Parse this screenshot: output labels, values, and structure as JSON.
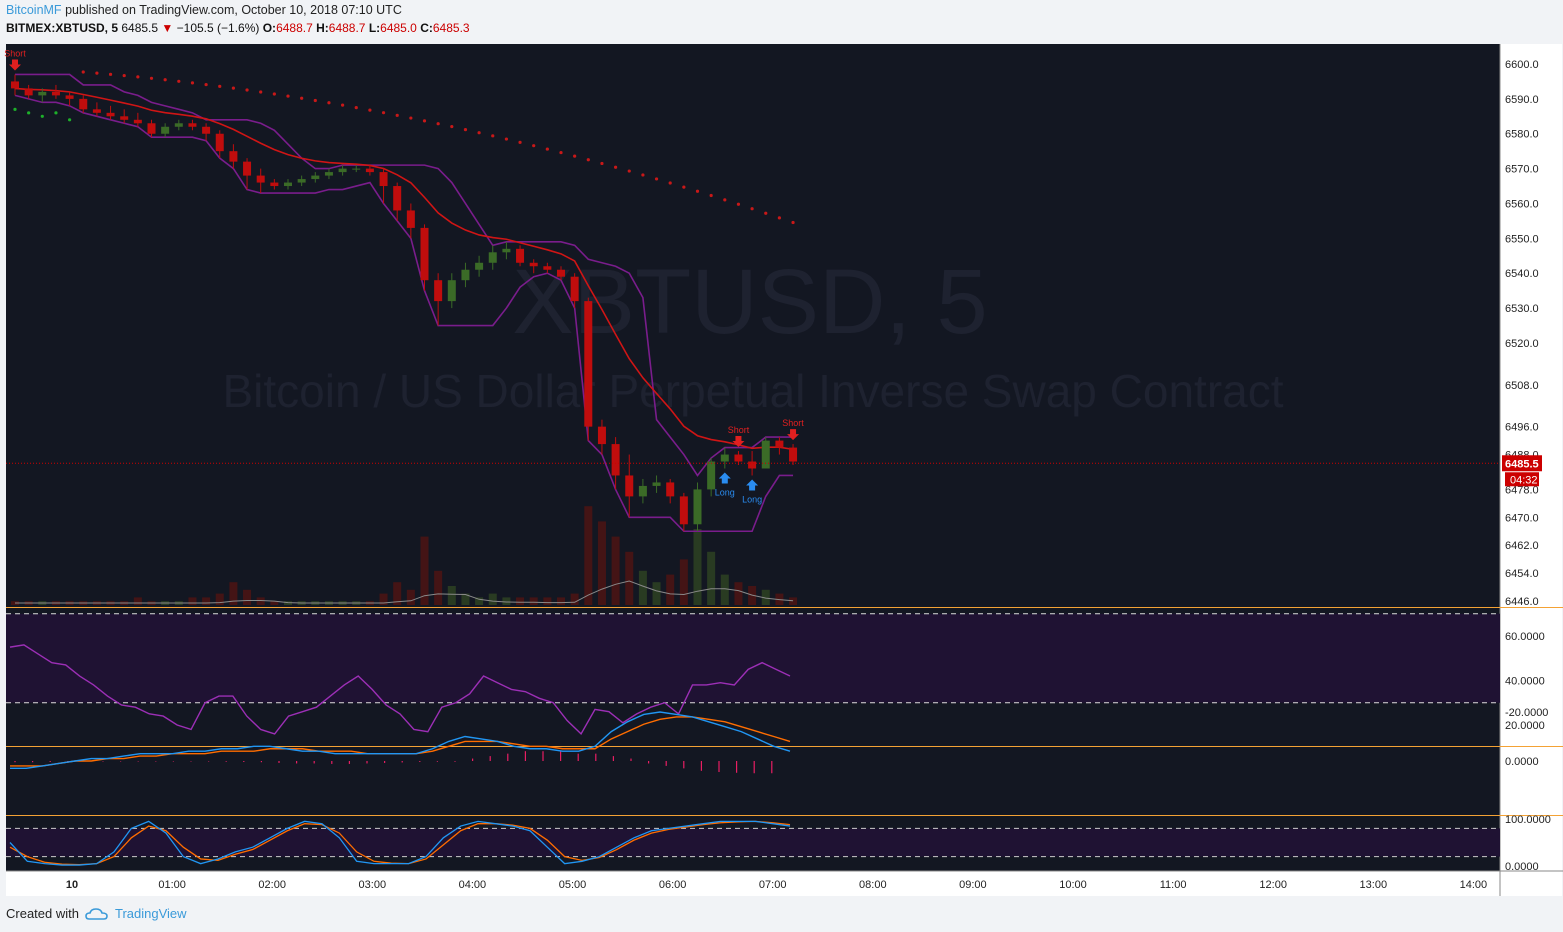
{
  "header": {
    "user": "BitcoinMF",
    "published_text": "published on TradingView.com, October 10, 2018 07:10 UTC"
  },
  "symbol_bar": {
    "symbol": "BITMEX:XBTUSD, 5",
    "last": "6485.5",
    "change": "−105.5 (−1.6%)",
    "open_label": "O:",
    "open": "6488.7",
    "high_label": "H:",
    "high": "6488.7",
    "low_label": "L:",
    "low": "6485.0",
    "close_label": "C:",
    "close": "6485.3"
  },
  "watermark": {
    "symbol": "XBTUSD, 5",
    "description": "Bitcoin / US Dollar Perpetual Inverse Swap Contract"
  },
  "price_badge": {
    "value": "6485.5",
    "countdown": "04:32"
  },
  "footer": {
    "created_with": "Created with",
    "brand": "TradingView"
  },
  "colors": {
    "background": "#131722",
    "up": "#3b6b27",
    "down": "#c00d0d",
    "ma": "#d01515",
    "psar": "#c81818",
    "channel": "#7a1d8c",
    "rsi_line": "#9c2fb6",
    "rsi_band": "#1f1233",
    "macd": "#2196f3",
    "signal": "#ff6d00",
    "hist": "#e91e63",
    "separator": "#f4a235"
  },
  "chart_data": [
    {
      "type": "candlestick",
      "title": "BITMEX:XBTUSD, 5",
      "x_tick_labels": [
        "10",
        "01:00",
        "02:00",
        "03:00",
        "04:00",
        "05:00",
        "06:00",
        "07:00",
        "08:00",
        "09:00",
        "10:00",
        "11:00",
        "12:00",
        "13:00",
        "14:00"
      ],
      "y_tick_labels": [
        "6600.0",
        "6590.0",
        "6580.0",
        "6570.0",
        "6560.0",
        "6550.0",
        "6540.0",
        "6530.0",
        "6520.0",
        "6508.0",
        "6496.0",
        "6488.0",
        "6478.0",
        "6470.0",
        "6462.0",
        "6454.0",
        "6446.0"
      ],
      "ylim": [
        6444,
        6602
      ],
      "candles_ohlc": [
        [
          6595,
          6597,
          6591,
          6593
        ],
        [
          6593,
          6594,
          6590,
          6591
        ],
        [
          6591,
          6593,
          6589,
          6592
        ],
        [
          6592,
          6594,
          6590,
          6591
        ],
        [
          6591,
          6592,
          6588,
          6590
        ],
        [
          6590,
          6591,
          6586,
          6587
        ],
        [
          6587,
          6589,
          6585,
          6586
        ],
        [
          6586,
          6588,
          6584,
          6585
        ],
        [
          6585,
          6587,
          6583,
          6584
        ],
        [
          6584,
          6586,
          6582,
          6583
        ],
        [
          6583,
          6584,
          6579,
          6580
        ],
        [
          6580,
          6583,
          6579,
          6582
        ],
        [
          6582,
          6584,
          6581,
          6583
        ],
        [
          6583,
          6584,
          6581,
          6582
        ],
        [
          6582,
          6583,
          6578,
          6580
        ],
        [
          6580,
          6581,
          6573,
          6575
        ],
        [
          6575,
          6577,
          6570,
          6572
        ],
        [
          6572,
          6573,
          6564,
          6568
        ],
        [
          6568,
          6570,
          6563,
          6566
        ],
        [
          6566,
          6567,
          6564,
          6565
        ],
        [
          6565,
          6567,
          6564,
          6566
        ],
        [
          6566,
          6568,
          6565,
          6567
        ],
        [
          6567,
          6569,
          6566,
          6568
        ],
        [
          6568,
          6570,
          6567,
          6569
        ],
        [
          6569,
          6571,
          6568,
          6570
        ],
        [
          6570,
          6571,
          6569,
          6570
        ],
        [
          6570,
          6571,
          6568,
          6569
        ],
        [
          6569,
          6570,
          6560,
          6565
        ],
        [
          6565,
          6566,
          6555,
          6558
        ],
        [
          6558,
          6560,
          6550,
          6553
        ],
        [
          6553,
          6554,
          6535,
          6538
        ],
        [
          6538,
          6540,
          6525,
          6532
        ],
        [
          6532,
          6540,
          6530,
          6538
        ],
        [
          6538,
          6543,
          6536,
          6541
        ],
        [
          6541,
          6545,
          6539,
          6543
        ],
        [
          6543,
          6548,
          6541,
          6546
        ],
        [
          6546,
          6549,
          6544,
          6547
        ],
        [
          6547,
          6548,
          6542,
          6543
        ],
        [
          6543,
          6544,
          6540,
          6542
        ],
        [
          6542,
          6543,
          6540,
          6541
        ],
        [
          6541,
          6542,
          6538,
          6539
        ],
        [
          6539,
          6540,
          6530,
          6532
        ],
        [
          6532,
          6533,
          6492,
          6496
        ],
        [
          6496,
          6498,
          6488,
          6491
        ],
        [
          6491,
          6493,
          6478,
          6482
        ],
        [
          6482,
          6488,
          6470,
          6476
        ],
        [
          6476,
          6481,
          6474,
          6479
        ],
        [
          6479,
          6482,
          6477,
          6480
        ],
        [
          6480,
          6481,
          6474,
          6476
        ],
        [
          6476,
          6477,
          6466,
          6468
        ],
        [
          6468,
          6480,
          6466,
          6478
        ],
        [
          6478,
          6487,
          6476,
          6486
        ],
        [
          6486,
          6490,
          6484,
          6488
        ],
        [
          6488,
          6489,
          6485,
          6486
        ],
        [
          6486,
          6489,
          6482,
          6484
        ],
        [
          6484,
          6493,
          6484,
          6492
        ],
        [
          6492,
          6493,
          6488,
          6490
        ],
        [
          6490,
          6491,
          6485,
          6486
        ]
      ],
      "volume": [
        1,
        1,
        1,
        1,
        1,
        1,
        1,
        1,
        1,
        2,
        1,
        1,
        1,
        2,
        2,
        3,
        6,
        4,
        2,
        1,
        1,
        1,
        1,
        1,
        1,
        1,
        1,
        3,
        6,
        4,
        18,
        9,
        5,
        3,
        2,
        3,
        2,
        2,
        2,
        2,
        2,
        3,
        26,
        22,
        18,
        14,
        9,
        6,
        8,
        12,
        20,
        14,
        8,
        6,
        5,
        4,
        3,
        2
      ],
      "annotations": [
        {
          "label": "Short"
        },
        {
          "label": "Short"
        },
        {
          "label": "Short"
        },
        {
          "label": "Long"
        },
        {
          "label": "Long"
        }
      ]
    },
    {
      "type": "line",
      "title": "RSI",
      "y_tick_labels": [
        "60.0000",
        "40.0000",
        "20.0000"
      ],
      "ylim": [
        10,
        72
      ],
      "upper_band": 70,
      "lower_band": 30,
      "values": [
        55,
        56,
        52,
        48,
        47,
        42,
        38,
        33,
        29,
        28,
        25,
        24,
        20,
        18,
        30,
        33,
        33,
        24,
        18,
        16,
        24,
        26,
        28,
        33,
        38,
        42,
        36,
        29,
        25,
        18,
        17,
        28,
        30,
        34,
        42,
        39,
        36,
        35,
        32,
        30,
        22,
        16,
        27,
        26,
        21,
        25,
        28,
        30,
        25,
        38,
        38,
        39,
        38,
        45,
        48,
        45,
        42
      ]
    },
    {
      "type": "line",
      "title": "MACD",
      "y_tick_labels": [
        "0.0000",
        "-20.0000"
      ],
      "ylim": [
        -25,
        6
      ],
      "macd": [
        3,
        3,
        2,
        1,
        0,
        -1,
        -1,
        -2,
        -3,
        -3,
        -3,
        -4,
        -4,
        -5,
        -5,
        -6,
        -6,
        -5,
        -4,
        -4,
        -3,
        -3,
        -3,
        -3,
        -3,
        -3,
        -5,
        -8,
        -10,
        -9,
        -8,
        -6,
        -5,
        -5,
        -4,
        -4,
        -6,
        -12,
        -16,
        -19,
        -20,
        -19,
        -18,
        -16,
        -14,
        -12,
        -9,
        -6,
        -4
      ],
      "signal": [
        2,
        2,
        2,
        1,
        0,
        0,
        -1,
        -1,
        -2,
        -2,
        -3,
        -3,
        -3,
        -4,
        -4,
        -4,
        -5,
        -5,
        -5,
        -4,
        -4,
        -4,
        -3,
        -3,
        -3,
        -3,
        -4,
        -6,
        -8,
        -8,
        -8,
        -7,
        -6,
        -6,
        -5,
        -5,
        -5,
        -9,
        -12,
        -15,
        -17,
        -18,
        -18,
        -17,
        -16,
        -14,
        -12,
        -10,
        -8
      ],
      "histogram": [
        0.5,
        0.5,
        0.4,
        0.3,
        0.2,
        0.2,
        0.2,
        0.2,
        0.2,
        0.2,
        0.2,
        0.2,
        0.3,
        0.4,
        0.5,
        0.8,
        1,
        1,
        1.2,
        1.2,
        1,
        0.8,
        0.6,
        0.4,
        0.3,
        0.3,
        -1,
        -2,
        -3,
        -4,
        -4,
        -4,
        -3,
        -3,
        -2,
        -1,
        1,
        2,
        3,
        4,
        4.5,
        4.8,
        5,
        5
      ]
    },
    {
      "type": "line",
      "title": "Stochastic",
      "y_tick_labels": [
        "100.0000",
        "0.0000"
      ],
      "ylim": [
        -5,
        110
      ],
      "upper_band": 80,
      "lower_band": 20,
      "k": [
        50,
        10,
        5,
        2,
        2,
        5,
        30,
        80,
        95,
        70,
        20,
        5,
        15,
        30,
        40,
        60,
        80,
        95,
        90,
        60,
        10,
        5,
        5,
        5,
        20,
        60,
        85,
        95,
        90,
        85,
        75,
        40,
        5,
        10,
        20,
        40,
        60,
        75,
        80,
        85,
        90,
        95,
        95,
        95,
        90,
        85
      ],
      "d": [
        40,
        20,
        8,
        4,
        3,
        5,
        20,
        60,
        85,
        75,
        40,
        15,
        12,
        25,
        35,
        55,
        75,
        90,
        88,
        70,
        30,
        10,
        6,
        5,
        15,
        45,
        75,
        90,
        90,
        87,
        80,
        55,
        20,
        12,
        18,
        35,
        55,
        70,
        78,
        83,
        88,
        92,
        94,
        95,
        92,
        88
      ]
    }
  ]
}
